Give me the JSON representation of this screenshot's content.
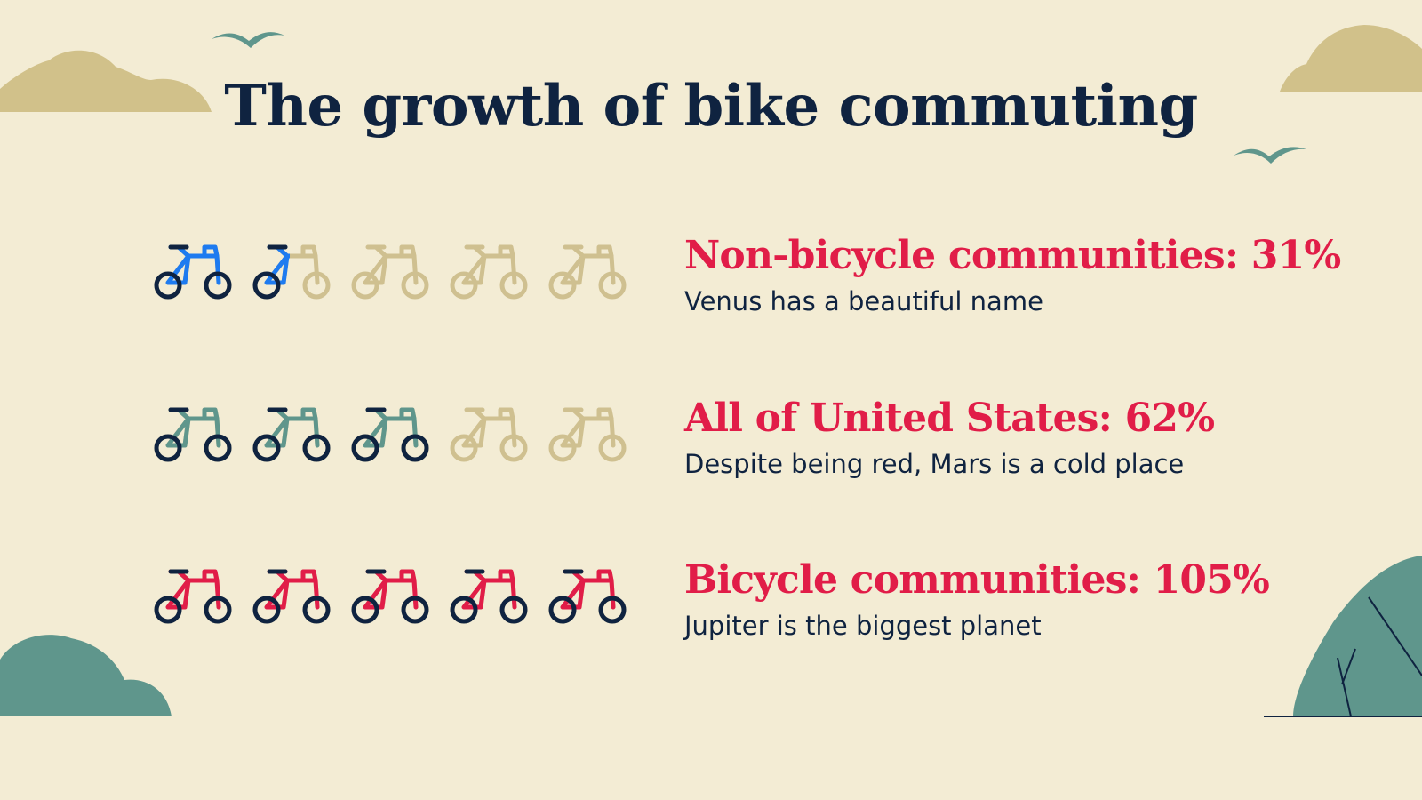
{
  "title": "The growth of bike commuting",
  "colors": {
    "background": "#f3ecd4",
    "title": "#0f2340",
    "accent_red": "#e11d48",
    "wheel": "#0f2340",
    "inactive": "#cfc090",
    "teal": "#5f968c",
    "sand": "#d1c18a",
    "blue": "#1e7bf0"
  },
  "rows": [
    {
      "label": "Non-bicycle communities: 31%",
      "description": "Venus has a beautiful name",
      "value": 31,
      "icons_total": 5,
      "icons_filled": 1.5,
      "color": "#1e7bf0",
      "icon": "bicycle-icon"
    },
    {
      "label": "All of United States: 62%",
      "description": "Despite being red, Mars is a cold place",
      "value": 62,
      "icons_total": 5,
      "icons_filled": 3,
      "color": "#5f968c",
      "icon": "bicycle-icon"
    },
    {
      "label": "Bicycle communities: 105%",
      "description": "Jupiter is the biggest planet",
      "value": 105,
      "icons_total": 5,
      "icons_filled": 5,
      "color": "#e11d48",
      "icon": "bicycle-icon"
    }
  ],
  "decorations": [
    "cloud-icon",
    "bird-icon",
    "bush-icon",
    "tree-icon"
  ]
}
